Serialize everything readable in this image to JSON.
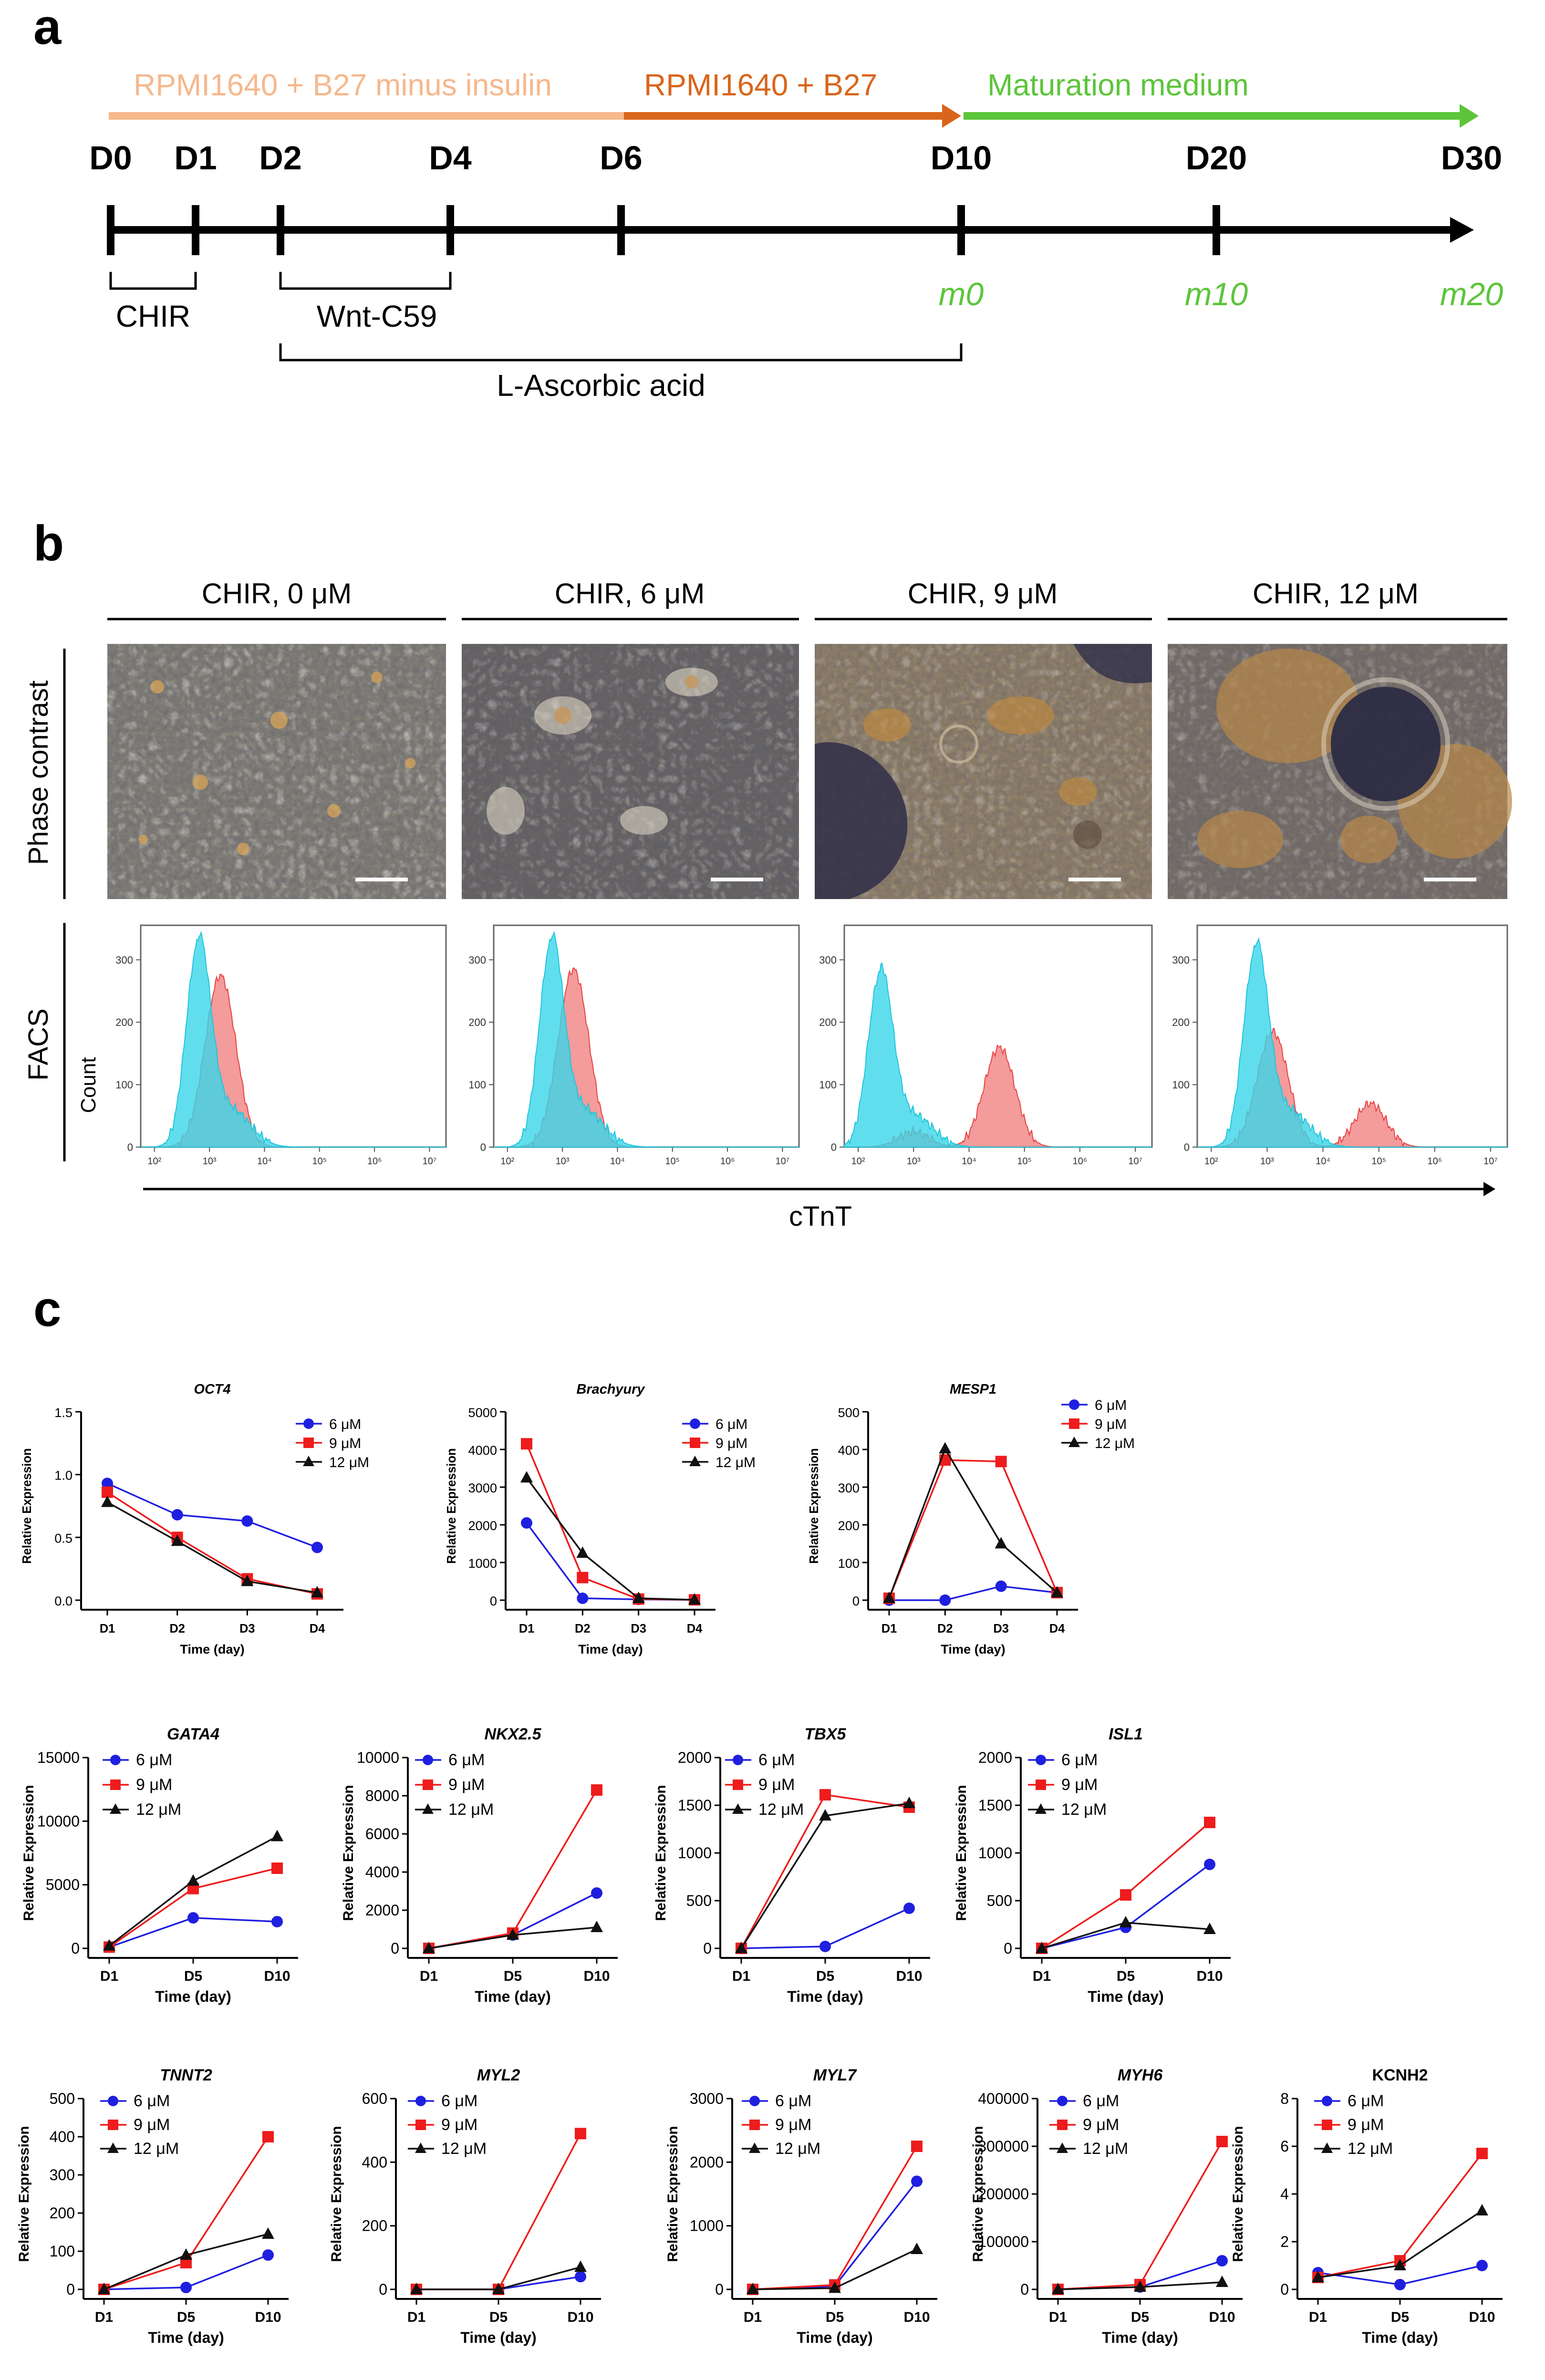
{
  "panel_a": {
    "label": "a",
    "media": [
      {
        "name": "RPMI1640 + B27 minus insulin",
        "color": "#f6b88c"
      },
      {
        "name": "RPMI1640 + B27",
        "color": "#d9651c"
      },
      {
        "name": "Maturation medium",
        "color": "#5cc53a"
      }
    ],
    "days": [
      "D0",
      "D1",
      "D2",
      "D4",
      "D6",
      "D10",
      "D20",
      "D30"
    ],
    "maturation_days": [
      "m0",
      "m10",
      "m20"
    ],
    "treatments": [
      {
        "name": "CHIR",
        "from": "D0",
        "to": "D1"
      },
      {
        "name": "Wnt-C59",
        "from": "D2",
        "to": "D4"
      },
      {
        "name": "L-Ascorbic acid",
        "from": "D2",
        "to": "D10"
      }
    ]
  },
  "panel_b": {
    "label": "b",
    "conditions": [
      "CHIR, 0 μM",
      "CHIR, 6 μM",
      "CHIR, 9 μM",
      "CHIR, 12 μM"
    ],
    "row_labels": [
      "Phase contrast",
      "FACS"
    ],
    "count_label": "Count",
    "x_axis_label": "cTnT",
    "x_ticks": [
      "10²",
      "10³",
      "10⁴",
      "10⁵",
      "10⁶",
      "10⁷"
    ],
    "y_ticks": [
      "0",
      "100",
      "200",
      "300"
    ],
    "colors": {
      "control": "#3ad6e8",
      "ctnt": "#f07a7a"
    },
    "histograms": [
      {
        "control_peak_log": 2.8,
        "control_max": 330,
        "ctnt_peaks": [
          {
            "log": 3.2,
            "max": 275
          }
        ]
      },
      {
        "control_peak_log": 2.8,
        "control_max": 330,
        "ctnt_peaks": [
          {
            "log": 3.2,
            "max": 285
          }
        ]
      },
      {
        "control_peak_log": 2.4,
        "control_max": 280,
        "ctnt_peaks": [
          {
            "log": 3.0,
            "max": 25
          },
          {
            "log": 4.55,
            "max": 160
          }
        ]
      },
      {
        "control_peak_log": 2.8,
        "control_max": 320,
        "ctnt_peaks": [
          {
            "log": 3.1,
            "max": 185
          },
          {
            "log": 4.85,
            "max": 70
          }
        ]
      }
    ]
  },
  "panel_c": {
    "label": "c",
    "legend": [
      "6 μM",
      "9 μM",
      "12 μM"
    ],
    "series_colors": [
      "#1f1fe0",
      "#ee1c1c",
      "#111111"
    ],
    "ylabel": "Relative Expression",
    "xlabel": "Time (day)"
  },
  "chart_data": [
    {
      "type": "line",
      "title": "OCT4",
      "categories": [
        "D1",
        "D2",
        "D3",
        "D4"
      ],
      "ylim": [
        0,
        1.5
      ],
      "yticks": [
        "0.0",
        "0.5",
        "1.0",
        "1.5"
      ],
      "series": [
        {
          "name": "6 μM",
          "values": [
            0.93,
            0.68,
            0.63,
            0.42
          ]
        },
        {
          "name": "9 μM",
          "values": [
            0.86,
            0.5,
            0.17,
            0.05
          ]
        },
        {
          "name": "12 μM",
          "values": [
            0.78,
            0.47,
            0.15,
            0.06
          ]
        }
      ],
      "xlabel": "Time (day)",
      "ylabel": "Relative Expression"
    },
    {
      "type": "line",
      "title": "Brachyury",
      "categories": [
        "D1",
        "D2",
        "D3",
        "D4"
      ],
      "ylim": [
        0,
        5000
      ],
      "yticks": [
        "0",
        "1000",
        "2000",
        "3000",
        "4000",
        "5000"
      ],
      "series": [
        {
          "name": "6 μM",
          "values": [
            2050,
            50,
            20,
            10
          ]
        },
        {
          "name": "9 μM",
          "values": [
            4150,
            600,
            30,
            10
          ]
        },
        {
          "name": "12 μM",
          "values": [
            3250,
            1250,
            50,
            10
          ]
        }
      ],
      "xlabel": "Time (day)",
      "ylabel": "Relative Expression"
    },
    {
      "type": "line",
      "title": "MESP1",
      "categories": [
        "D1",
        "D2",
        "D3",
        "D4"
      ],
      "ylim": [
        0,
        500
      ],
      "yticks": [
        "0",
        "100",
        "200",
        "300",
        "400",
        "500"
      ],
      "series": [
        {
          "name": "6 μM",
          "values": [
            0,
            0,
            37,
            20
          ]
        },
        {
          "name": "9 μM",
          "values": [
            5,
            372,
            368,
            20
          ]
        },
        {
          "name": "12 μM",
          "values": [
            5,
            402,
            150,
            20
          ]
        }
      ],
      "xlabel": "Time (day)",
      "ylabel": "Relative Expression"
    },
    {
      "type": "line",
      "title": "GATA4",
      "categories": [
        "D1",
        "D5",
        "D10"
      ],
      "ylim": [
        0,
        15000
      ],
      "yticks": [
        "0",
        "5000",
        "10000",
        "15000"
      ],
      "series": [
        {
          "name": "6 μM",
          "values": [
            100,
            2400,
            2100
          ]
        },
        {
          "name": "9 μM",
          "values": [
            100,
            4700,
            6300
          ]
        },
        {
          "name": "12 μM",
          "values": [
            200,
            5300,
            8800
          ]
        }
      ],
      "xlabel": "Time (day)",
      "ylabel": "Relative Expression"
    },
    {
      "type": "line",
      "title": "NKX2.5",
      "categories": [
        "D1",
        "D5",
        "D10"
      ],
      "ylim": [
        0,
        10000
      ],
      "yticks": [
        "0",
        "2000",
        "4000",
        "6000",
        "8000",
        "10000"
      ],
      "series": [
        {
          "name": "6 μM",
          "values": [
            0,
            700,
            2900
          ]
        },
        {
          "name": "9 μM",
          "values": [
            0,
            800,
            8300
          ]
        },
        {
          "name": "12 μM",
          "values": [
            0,
            700,
            1100
          ]
        }
      ],
      "xlabel": "Time (day)",
      "ylabel": "Relative Expression"
    },
    {
      "type": "line",
      "title": "TBX5",
      "categories": [
        "D1",
        "D5",
        "D10"
      ],
      "ylim": [
        0,
        2000
      ],
      "yticks": [
        "0",
        "500",
        "1000",
        "1500",
        "2000"
      ],
      "series": [
        {
          "name": "6 μM",
          "values": [
            0,
            20,
            420
          ]
        },
        {
          "name": "9 μM",
          "values": [
            0,
            1610,
            1480
          ]
        },
        {
          "name": "12 μM",
          "values": [
            0,
            1390,
            1520
          ]
        }
      ],
      "xlabel": "Time (day)",
      "ylabel": "Relative Expression"
    },
    {
      "type": "line",
      "title": "ISL1",
      "categories": [
        "D1",
        "D5",
        "D10"
      ],
      "ylim": [
        0,
        2000
      ],
      "yticks": [
        "0",
        "500",
        "1000",
        "1500",
        "2000"
      ],
      "series": [
        {
          "name": "6 μM",
          "values": [
            0,
            220,
            880
          ]
        },
        {
          "name": "9 μM",
          "values": [
            0,
            560,
            1320
          ]
        },
        {
          "name": "12 μM",
          "values": [
            0,
            270,
            200
          ]
        }
      ],
      "xlabel": "Time (day)",
      "ylabel": "Relative Expression"
    },
    {
      "type": "line",
      "title": "TNNT2",
      "categories": [
        "D1",
        "D5",
        "D10"
      ],
      "ylim": [
        0,
        500
      ],
      "yticks": [
        "0",
        "100",
        "200",
        "300",
        "400",
        "500"
      ],
      "series": [
        {
          "name": "6 μM",
          "values": [
            0,
            5,
            90
          ]
        },
        {
          "name": "9 μM",
          "values": [
            0,
            70,
            400
          ]
        },
        {
          "name": "12 μM",
          "values": [
            0,
            90,
            145
          ]
        }
      ],
      "xlabel": "Time (day)",
      "ylabel": "Relative Expression"
    },
    {
      "type": "line",
      "title": "MYL2",
      "categories": [
        "D1",
        "D5",
        "D10"
      ],
      "ylim": [
        0,
        600
      ],
      "yticks": [
        "0",
        "200",
        "400",
        "600"
      ],
      "series": [
        {
          "name": "6 μM",
          "values": [
            0,
            0,
            40
          ]
        },
        {
          "name": "9 μM",
          "values": [
            0,
            0,
            490
          ]
        },
        {
          "name": "12 μM",
          "values": [
            0,
            0,
            70
          ]
        }
      ],
      "xlabel": "Time (day)",
      "ylabel": "Relative Expression"
    },
    {
      "type": "line",
      "title": "MYL7",
      "categories": [
        "D1",
        "D5",
        "D10"
      ],
      "ylim": [
        0,
        3000
      ],
      "yticks": [
        "0",
        "1000",
        "2000",
        "3000"
      ],
      "series": [
        {
          "name": "6 μM",
          "values": [
            0,
            50,
            1700
          ]
        },
        {
          "name": "9 μM",
          "values": [
            0,
            70,
            2250
          ]
        },
        {
          "name": "12 μM",
          "values": [
            0,
            20,
            630
          ]
        }
      ],
      "xlabel": "Time (day)",
      "ylabel": "Relative Expression"
    },
    {
      "type": "line",
      "title": "MYH6",
      "categories": [
        "D1",
        "D5",
        "D10"
      ],
      "ylim": [
        0,
        400000
      ],
      "yticks": [
        "0",
        "100000",
        "200000",
        "300000",
        "400000"
      ],
      "series": [
        {
          "name": "6 μM",
          "values": [
            0,
            5000,
            60000
          ]
        },
        {
          "name": "9 μM",
          "values": [
            0,
            10000,
            310000
          ]
        },
        {
          "name": "12 μM",
          "values": [
            0,
            5000,
            15000
          ]
        }
      ],
      "xlabel": "Time (day)",
      "ylabel": "Relative Expression"
    },
    {
      "type": "line",
      "title": "KCNH2",
      "categories": [
        "D1",
        "D5",
        "D10"
      ],
      "ylim": [
        0,
        8
      ],
      "yticks": [
        "0",
        "2",
        "4",
        "6",
        "8"
      ],
      "series": [
        {
          "name": "6 μM",
          "values": [
            0.7,
            0.2,
            1.0
          ]
        },
        {
          "name": "9 μM",
          "values": [
            0.5,
            1.2,
            5.7
          ]
        },
        {
          "name": "12 μM",
          "values": [
            0.5,
            1.0,
            3.3
          ]
        }
      ],
      "xlabel": "Time (day)",
      "ylabel": "Relative Expression"
    }
  ]
}
